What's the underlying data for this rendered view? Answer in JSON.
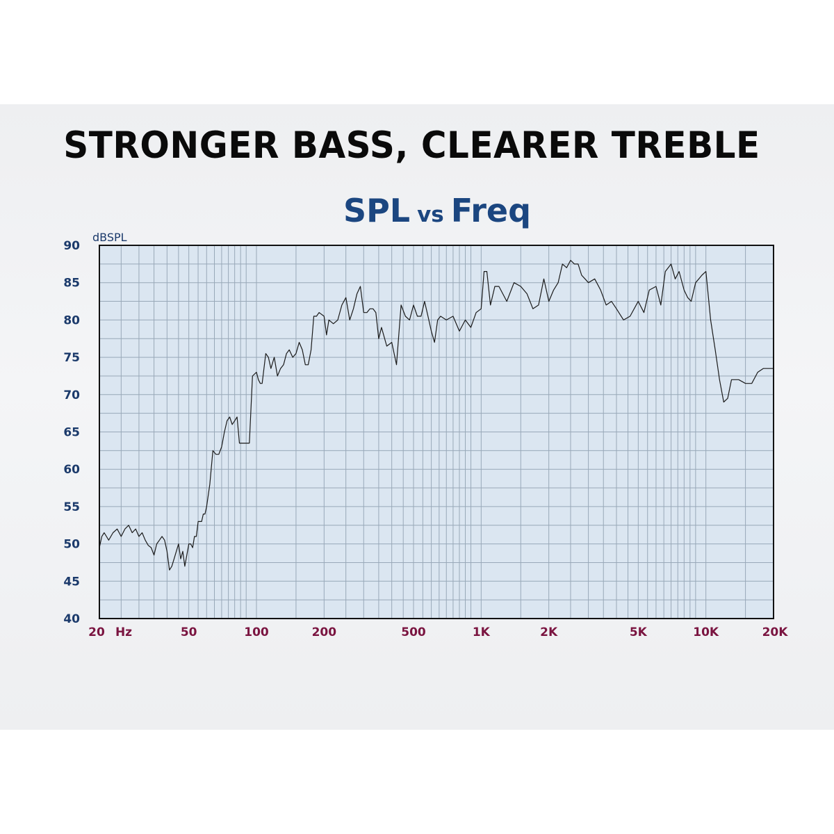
{
  "headline": "STRONGER BASS, CLEARER TREBLE",
  "subtitle": {
    "part1": "SPL",
    "part2": "vs",
    "part3": "Freq"
  },
  "colors": {
    "plot_bg": "#dbe6f1",
    "grid": "#98a8b8",
    "line": "#1a1a1a",
    "ytick": "#1b3a6b",
    "xtick": "#7a1440",
    "title": "#1b4680"
  },
  "chart_data": {
    "type": "line",
    "title": "SPL vs Freq",
    "ylabel": "dBSPL",
    "xlabel": "",
    "xscale": "log",
    "xlim": [
      20,
      20000
    ],
    "ylim": [
      40,
      90
    ],
    "grid": true,
    "yticks": [
      "40",
      "45",
      "50",
      "55",
      "60",
      "65",
      "70",
      "75",
      "80",
      "85",
      "90"
    ],
    "xticks": [
      {
        "value": 20,
        "label": "20"
      },
      {
        "value": 26,
        "label": "Hz"
      },
      {
        "value": 50,
        "label": "50"
      },
      {
        "value": 100,
        "label": "100"
      },
      {
        "value": 200,
        "label": "200"
      },
      {
        "value": 500,
        "label": "500"
      },
      {
        "value": 1000,
        "label": "1K"
      },
      {
        "value": 2000,
        "label": "2K"
      },
      {
        "value": 5000,
        "label": "5K"
      },
      {
        "value": 10000,
        "label": "10K"
      },
      {
        "value": 20000,
        "label": "20K"
      }
    ],
    "series": [
      {
        "x": [
          20,
          20.5,
          21,
          22,
          23,
          24,
          25,
          26,
          27,
          28,
          29,
          30,
          31,
          32,
          33,
          34,
          35,
          36,
          37,
          38,
          39,
          40,
          41,
          42,
          43,
          44,
          45,
          46,
          47,
          48,
          50,
          51,
          52,
          53,
          54,
          55,
          56,
          57,
          58,
          59,
          60,
          62,
          64,
          66,
          68,
          70,
          72,
          74,
          76,
          78,
          80,
          82,
          84,
          86,
          88,
          90,
          93,
          96,
          100,
          102,
          104,
          106,
          110,
          113,
          116,
          120,
          124,
          128,
          132,
          136,
          140,
          145,
          150,
          155,
          160,
          165,
          170,
          175,
          180,
          185,
          190,
          200,
          205,
          210,
          220,
          230,
          240,
          250,
          260,
          270,
          280,
          290,
          300,
          310,
          320,
          330,
          340,
          350,
          360,
          380,
          400,
          420,
          440,
          460,
          480,
          500,
          520,
          540,
          560,
          580,
          600,
          620,
          640,
          660,
          700,
          750,
          800,
          850,
          900,
          950,
          1000,
          1030,
          1060,
          1100,
          1150,
          1200,
          1300,
          1400,
          1500,
          1600,
          1700,
          1800,
          1900,
          2000,
          2100,
          2200,
          2300,
          2400,
          2500,
          2600,
          2700,
          2800,
          2900,
          3000,
          3200,
          3400,
          3600,
          3800,
          4000,
          4300,
          4600,
          5000,
          5300,
          5600,
          6000,
          6300,
          6600,
          7000,
          7300,
          7600,
          8000,
          8300,
          8600,
          9000,
          9300,
          9600,
          10000,
          10500,
          11000,
          11500,
          12000,
          12500,
          13000,
          14000,
          15000,
          16000,
          17000,
          18000,
          19000,
          20000
        ],
        "y": [
          49.5,
          51,
          51.5,
          50.5,
          51.5,
          52,
          51,
          52,
          52.5,
          51.5,
          52,
          51,
          51.5,
          50.5,
          49.8,
          49.5,
          48.5,
          50,
          50.5,
          51,
          50.5,
          49,
          46.5,
          47,
          48,
          49,
          50,
          48,
          49,
          47,
          50,
          50,
          49.5,
          51,
          51,
          53,
          53,
          53,
          54,
          54,
          55,
          58,
          62.5,
          62,
          62,
          63,
          65,
          66.5,
          67,
          66,
          66.5,
          67,
          63.5,
          63.5,
          63.5,
          63.5,
          63.5,
          72.5,
          73,
          72,
          71.5,
          71.5,
          75.5,
          75,
          73.5,
          75,
          72.5,
          73.5,
          74,
          75.5,
          76,
          75,
          75.5,
          77,
          76,
          74,
          74,
          76,
          80.5,
          80.5,
          81,
          80.5,
          78,
          80,
          79.5,
          80,
          82,
          83,
          80,
          81.5,
          83.5,
          84.5,
          81,
          81,
          81.5,
          81.5,
          81,
          77.5,
          79,
          76.5,
          77,
          74,
          82,
          80.5,
          80,
          82,
          80.5,
          80.5,
          82.5,
          80.5,
          78.5,
          77,
          80,
          80.5,
          80,
          80.5,
          78.5,
          80,
          79,
          81,
          81.5,
          86.5,
          86.5,
          82,
          84.5,
          84.5,
          82.5,
          85,
          84.5,
          83.5,
          81.5,
          82,
          85.5,
          82.5,
          84,
          85,
          87.5,
          87,
          88,
          87.5,
          87.5,
          86,
          85.5,
          85,
          85.5,
          84,
          82,
          82.5,
          81.5,
          80,
          80.5,
          82.5,
          81,
          84,
          84.5,
          82,
          86.5,
          87.5,
          85.5,
          86.5,
          84,
          83,
          82.5,
          85,
          85.5,
          86,
          86.5,
          80,
          76,
          72,
          69,
          69.5,
          72,
          72,
          71.5,
          71.5,
          73,
          73.5,
          73.5,
          73.5
        ]
      }
    ]
  }
}
